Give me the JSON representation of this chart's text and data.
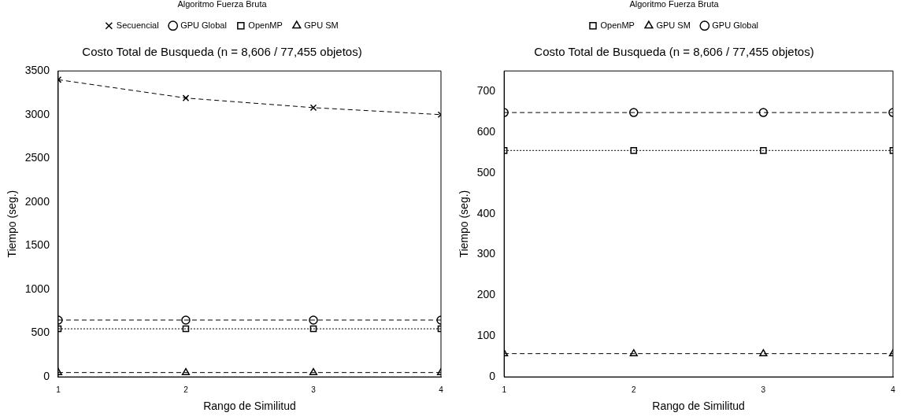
{
  "chart_data": [
    {
      "type": "line",
      "title": "Costo Total de Busqueda (n = 8,606 / 77,455 objetos)",
      "xlabel": "Rango de Similitud",
      "ylabel": "Tiempo (seg.)",
      "legend_title": "Algoritmo Fuerza Bruta",
      "legend": "top",
      "grid": false,
      "x": [
        1,
        2,
        3,
        4
      ],
      "xlim": [
        1,
        4
      ],
      "xticks": [
        1,
        2,
        3,
        4
      ],
      "ylim": [
        0,
        3500
      ],
      "yticks": [
        0,
        500,
        1000,
        1500,
        2000,
        2500,
        3000,
        3500
      ],
      "series": [
        {
          "name": "Secuencial",
          "color": "#000000",
          "marker": "cross",
          "line_style": "dashed",
          "values": [
            3400,
            3190,
            3080,
            3000
          ]
        },
        {
          "name": "GPU Global",
          "color": "#000000",
          "marker": "circle",
          "line_style": "dashed",
          "values": [
            650,
            650,
            650,
            650
          ]
        },
        {
          "name": "OpenMP",
          "color": "#000000",
          "marker": "square",
          "line_style": "dotted",
          "values": [
            550,
            550,
            550,
            550
          ]
        },
        {
          "name": "GPU SM",
          "color": "#000000",
          "marker": "triangle",
          "line_style": "dashed",
          "values": [
            50,
            50,
            50,
            50
          ]
        }
      ]
    },
    {
      "type": "line",
      "title": "Costo Total de Busqueda (n = 8,606 / 77,455 objetos)",
      "xlabel": "Rango de Similitud",
      "ylabel": "Tiempo (seg.)",
      "legend_title": "Algoritmo Fuerza Bruta",
      "legend": "top",
      "grid": false,
      "x": [
        1,
        2,
        3,
        4
      ],
      "xlim": [
        1,
        4
      ],
      "xticks": [
        1,
        2,
        3,
        4
      ],
      "ylim": [
        0,
        750
      ],
      "yticks": [
        0,
        100,
        200,
        300,
        400,
        500,
        600,
        700
      ],
      "series": [
        {
          "name": "OpenMP",
          "color": "#000000",
          "marker": "square",
          "line_style": "dotted",
          "values": [
            555,
            555,
            555,
            555
          ]
        },
        {
          "name": "GPU SM",
          "color": "#000000",
          "marker": "triangle",
          "line_style": "dashed",
          "values": [
            57,
            57,
            57,
            57
          ]
        },
        {
          "name": "GPU Global",
          "color": "#000000",
          "marker": "circle",
          "line_style": "dashed",
          "values": [
            648,
            648,
            648,
            648
          ]
        }
      ]
    }
  ]
}
